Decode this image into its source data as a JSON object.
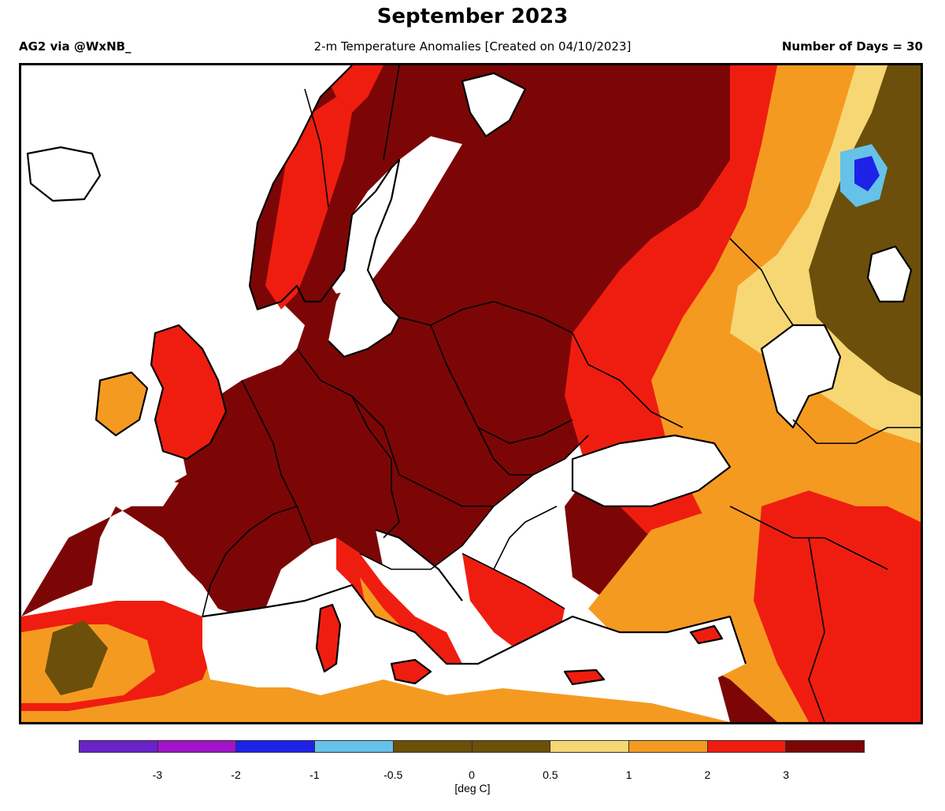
{
  "header": {
    "title": "September 2023",
    "credit": "AG2 via @WxNB_",
    "subtitle": "2-m Temperature Anomalies [Created on 04/10/2023]",
    "days": "Number of Days = 30"
  },
  "legend": {
    "colors": [
      "#6a22c9",
      "#a115c8",
      "#1e22e6",
      "#66c2e8",
      "#6b4f0a",
      "#6b4f0a",
      "#f7d774",
      "#f59a21",
      "#ef1d10",
      "#7c0606"
    ],
    "ticks": [
      "-3",
      "-2",
      "-1",
      "-0.5",
      "0",
      "0.5",
      "1",
      "2",
      "3"
    ],
    "unit": "[deg C]"
  },
  "map": {
    "palette": {
      "lt_neg3": "#6a22c9",
      "neg3_neg2": "#a115c8",
      "neg2_neg1": "#1e22e6",
      "neg1_neg05": "#66c2e8",
      "neg05_05": "#6b4f0a",
      "p05_1": "#f7d774",
      "p1_2": "#f59a21",
      "p2_3": "#ef1d10",
      "gt3": "#7c0606",
      "water": "#ffffff",
      "border": "#000000"
    }
  }
}
